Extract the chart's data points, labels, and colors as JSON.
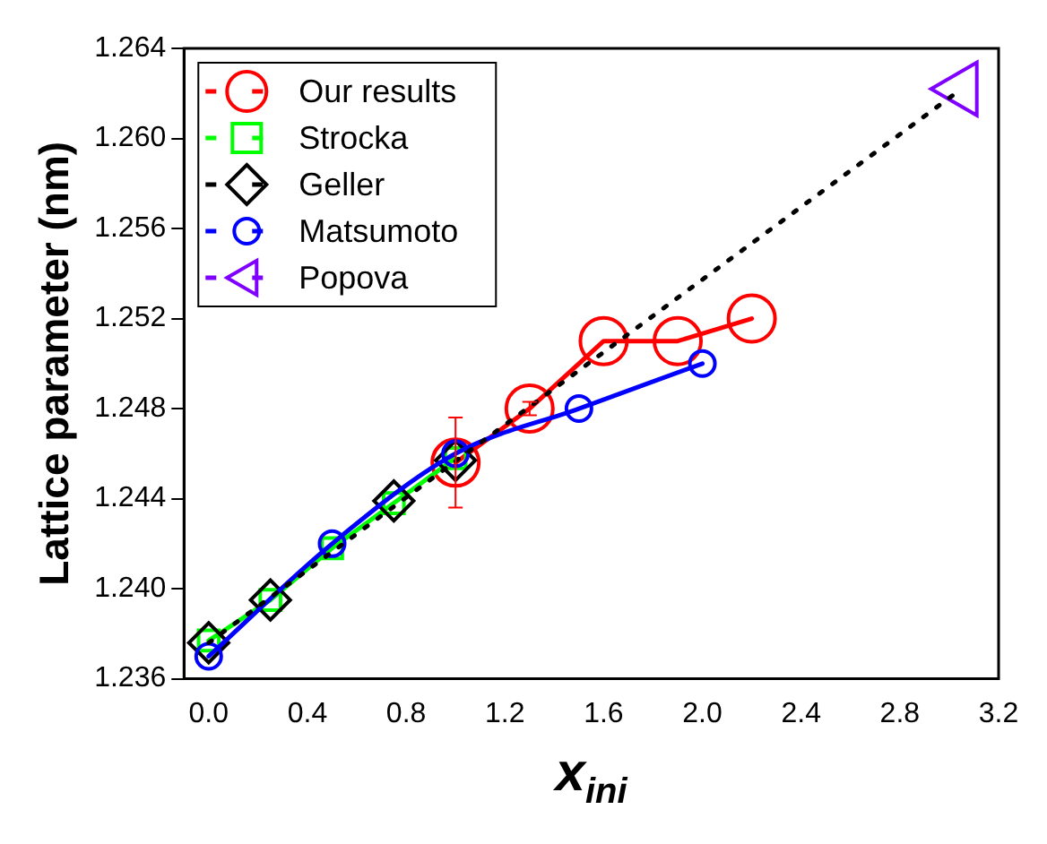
{
  "chart_data": {
    "type": "scatter",
    "xlabel": "x$_{ini}$",
    "ylabel": "Lattice parameter (nm)",
    "xlim": [
      -0.1,
      3.2
    ],
    "xticks": [
      {
        "value": 0,
        "label": "0.0"
      },
      0.4,
      0.8,
      1.2,
      1.6,
      {
        "value": 2,
        "label": "2.0"
      },
      2.4,
      2.8,
      3.2
    ],
    "ylim": [
      1.236,
      1.264
    ],
    "yticks": [
      1.236,
      {
        "value": 1.24,
        "label": "1.240"
      },
      1.244,
      1.248,
      1.252,
      1.256,
      {
        "value": 1.26,
        "label": "1.260"
      },
      1.264
    ],
    "grid": false,
    "legend": "top left",
    "series": [
      {
        "name": "Our results",
        "type": "line",
        "color": "#ff0000",
        "marker": "circle",
        "line_style": "solid",
        "x": [
          1.0,
          1.3,
          1.6,
          1.9,
          2.2
        ],
        "values": [
          1.2456,
          1.248,
          1.251,
          1.251,
          1.252
        ],
        "errors": [
          0.002,
          0.0003,
          null,
          null,
          null
        ]
      },
      {
        "name": "Strocka",
        "type": "line",
        "color": "#00ff00",
        "marker": "square",
        "line_style": "solid",
        "x": [
          0,
          0.25,
          0.5,
          0.75,
          1.0
        ],
        "values": [
          1.2377,
          1.2395,
          1.2418,
          1.2438,
          1.2458
        ]
      },
      {
        "name": "Geller",
        "type": "scatter",
        "color": "#000000",
        "marker": "diamond",
        "x": [
          0,
          0.25,
          0.75,
          1.0
        ],
        "values": [
          1.2376,
          1.2395,
          1.2439,
          1.2457
        ]
      },
      {
        "name": "Matsumoto",
        "type": "line",
        "color": "#0000ff",
        "marker": "circle",
        "line_style": "solid",
        "x": [
          0,
          0.5,
          1.0,
          1.5,
          2.0
        ],
        "values": [
          1.237,
          1.242,
          1.246,
          1.248,
          1.25
        ]
      },
      {
        "name": "Popova",
        "type": "scatter",
        "color": "#7f00ff",
        "marker": "triangle",
        "x": [
          3.05
        ],
        "values": [
          1.2622
        ]
      },
      {
        "type": "line",
        "color": "#000000",
        "marker": "none",
        "line_style": "dotted",
        "x": [
          0,
          3.05
        ],
        "values": [
          1.2376,
          1.2622
        ]
      }
    ]
  }
}
